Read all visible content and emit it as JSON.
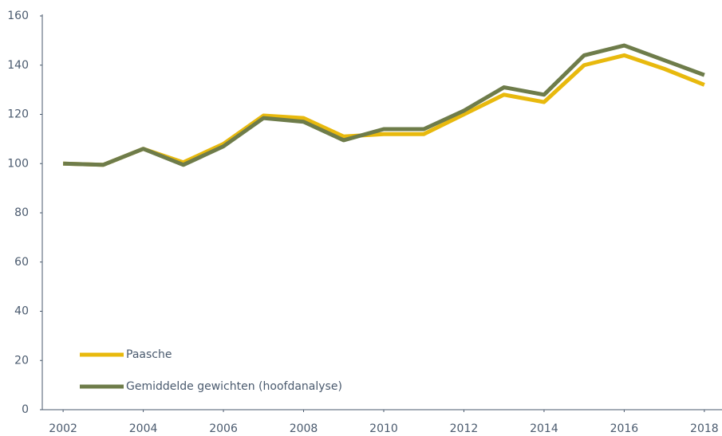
{
  "chart_data": {
    "type": "line",
    "x": [
      2002,
      2003,
      2004,
      2005,
      2006,
      2007,
      2008,
      2009,
      2010,
      2011,
      2012,
      2013,
      2014,
      2015,
      2016,
      2017,
      2018
    ],
    "series": [
      {
        "name": "Paasche",
        "color": "#e8b90d",
        "values": [
          100,
          99.5,
          106,
          100.5,
          108,
          119.5,
          118.5,
          111,
          112,
          112,
          120,
          128,
          125,
          140,
          144,
          138.5,
          132
        ]
      },
      {
        "name": "Gemiddelde gewichten (hoofdanalyse)",
        "color": "#6e7c4a",
        "values": [
          100,
          99.5,
          106,
          99.5,
          107,
          118.5,
          117,
          109.5,
          114,
          114,
          121.5,
          131,
          128,
          144,
          148,
          142,
          136
        ]
      }
    ],
    "xlim": [
      2001.5,
      2018.5
    ],
    "xticks": [
      2002,
      2004,
      2006,
      2008,
      2010,
      2012,
      2014,
      2016,
      2018
    ],
    "ylim": [
      0,
      160
    ],
    "yticks": [
      0,
      20,
      40,
      60,
      80,
      100,
      120,
      140,
      160
    ],
    "legend": "lower left"
  }
}
